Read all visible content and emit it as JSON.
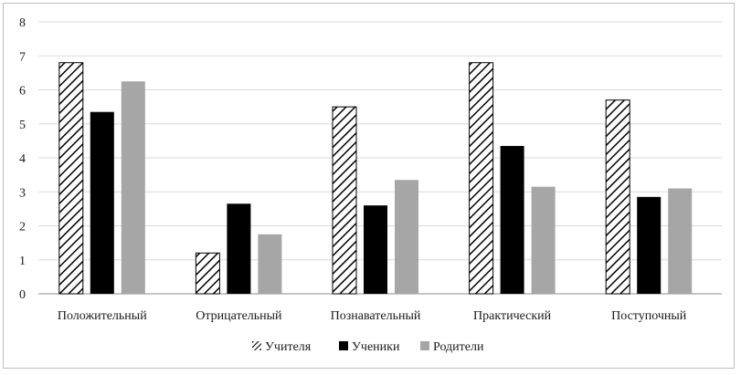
{
  "chart_data": {
    "type": "bar",
    "categories": [
      "Положительный",
      "Отрицательный",
      "Познавательный",
      "Практический",
      "Поступочный"
    ],
    "series": [
      {
        "name": "Учителя",
        "values": [
          6.8,
          1.2,
          5.5,
          6.8,
          5.7
        ],
        "fill": "hatch"
      },
      {
        "name": "Ученики",
        "values": [
          5.35,
          2.65,
          2.6,
          4.35,
          2.85
        ],
        "color": "#000000"
      },
      {
        "name": "Родители",
        "values": [
          6.25,
          1.75,
          3.35,
          3.15,
          3.1
        ],
        "color": "#a6a6a6"
      }
    ],
    "yticks": [
      "0",
      "1",
      "2",
      "3",
      "4",
      "5",
      "6",
      "7",
      "8"
    ],
    "ylim": [
      0,
      8
    ],
    "grid": "horizontal",
    "legend": "bottom",
    "title": "",
    "xlabel": "",
    "ylabel": ""
  }
}
